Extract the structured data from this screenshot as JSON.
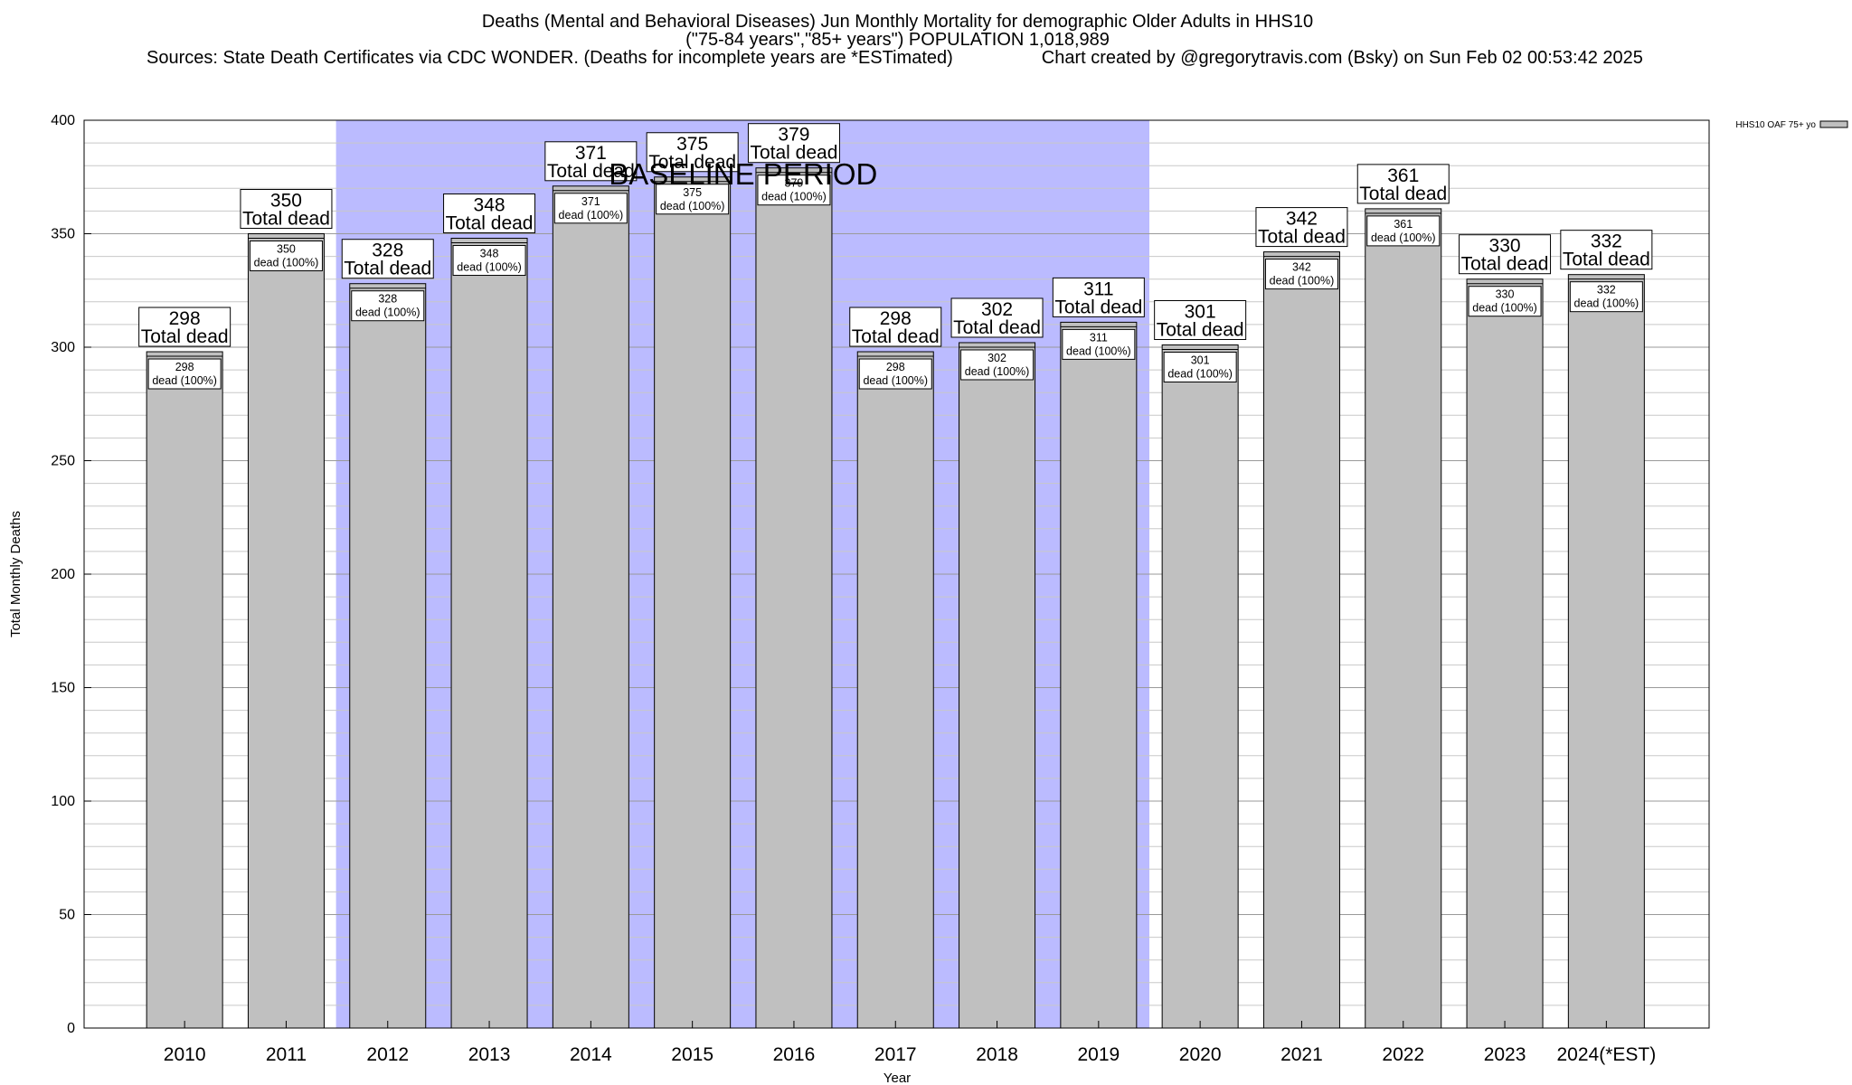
{
  "title": {
    "line1": "Deaths (Mental and Behavioral Diseases) Jun Monthly Mortality for demographic Older Adults in HHS10",
    "line2": "(\"75-84 years\",\"85+ years\") POPULATION 1,018,989",
    "sources": "Sources: State Death Certificates via CDC WONDER. (Deaths for incomplete years are *ESTimated)",
    "credit": "Chart created by @gregorytravis.com (Bsky) on Sun Feb 02 00:53:42 2025"
  },
  "chart_data": {
    "type": "bar",
    "categories": [
      "2010",
      "2011",
      "2012",
      "2013",
      "2014",
      "2015",
      "2016",
      "2017",
      "2018",
      "2019",
      "2020",
      "2021",
      "2022",
      "2023",
      "2024(*EST)"
    ],
    "series": [
      {
        "name": "HHS10 OAF 75+ yo",
        "values": [
          298,
          350,
          328,
          348,
          371,
          375,
          379,
          298,
          302,
          311,
          301,
          342,
          361,
          330,
          332
        ],
        "color": "#c0c0c0"
      }
    ],
    "total_label": "Total dead",
    "inner_label_suffix": "dead (100%)",
    "xlabel": "Year",
    "ylabel": "Total Monthly Deaths",
    "ylim": [
      0,
      400
    ],
    "yticks": [
      0,
      50,
      100,
      150,
      200,
      250,
      300,
      350,
      400
    ],
    "minor_grid_step": 10,
    "grid": true,
    "baseline": {
      "label": "BASELINE PERIOD",
      "from_category": "2012",
      "to_category": "2019",
      "color": "#bbbbff"
    },
    "legend_position": "top-right"
  }
}
